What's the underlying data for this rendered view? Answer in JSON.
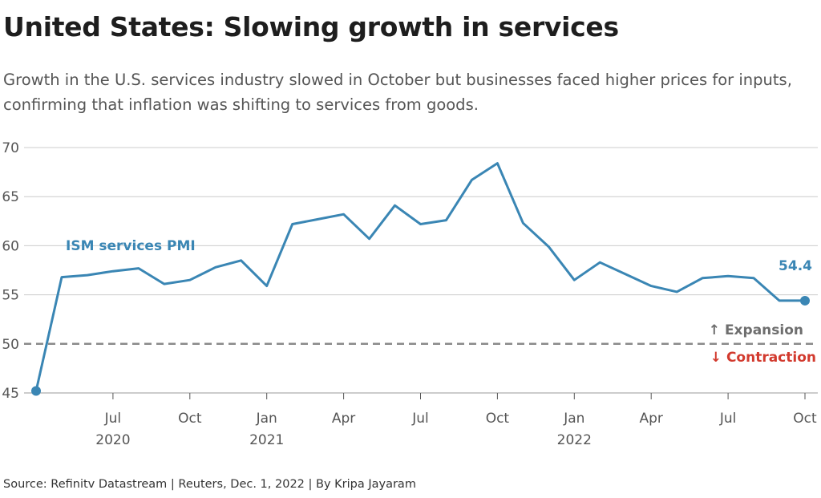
{
  "title": "United States: Slowing growth in services",
  "subtitle_lines": [
    "Growth in the U.S. services industry slowed in October but businesses faced higher prices for inputs,",
    "confirming that inflation was shifting to services from goods."
  ],
  "source": "Source: Refinitv Datastream | Reuters, Dec. 1, 2022 | By Kripa Jayaram",
  "colors": {
    "line": "#3a86b4",
    "grid": "#cccccc",
    "reference": "#8a8a8a",
    "contraction": "#d23a2e",
    "expansion": "#6e6e6e"
  },
  "chart_data": {
    "type": "line",
    "title": "United States: Slowing growth in services",
    "xlabel": "",
    "ylabel": "",
    "ylim": [
      45,
      70
    ],
    "yticks": [
      "45",
      "50",
      "55",
      "60",
      "65",
      "70"
    ],
    "grid": true,
    "xticks": [
      {
        "date": "2020-07",
        "label": "Jul",
        "year": "2020"
      },
      {
        "date": "2020-10",
        "label": "Oct",
        "year": ""
      },
      {
        "date": "2021-01",
        "label": "Jan",
        "year": "2021"
      },
      {
        "date": "2021-04",
        "label": "Apr",
        "year": ""
      },
      {
        "date": "2021-07",
        "label": "Jul",
        "year": ""
      },
      {
        "date": "2021-10",
        "label": "Oct",
        "year": ""
      },
      {
        "date": "2022-01",
        "label": "Jan",
        "year": "2022"
      },
      {
        "date": "2022-04",
        "label": "Apr",
        "year": ""
      },
      {
        "date": "2022-07",
        "label": "Jul",
        "year": ""
      },
      {
        "date": "2022-10",
        "label": "Oct",
        "year": ""
      }
    ],
    "x": [
      "2020-04",
      "2020-05",
      "2020-06",
      "2020-07",
      "2020-08",
      "2020-09",
      "2020-10",
      "2020-11",
      "2020-12",
      "2021-01",
      "2021-02",
      "2021-03",
      "2021-04",
      "2021-05",
      "2021-06",
      "2021-07",
      "2021-08",
      "2021-09",
      "2021-10",
      "2021-11",
      "2021-12",
      "2022-01",
      "2022-02",
      "2022-03",
      "2022-04",
      "2022-05",
      "2022-06",
      "2022-07",
      "2022-08",
      "2022-09",
      "2022-10"
    ],
    "series": [
      {
        "name": "ISM services PMI",
        "values": [
          45.2,
          56.8,
          57.0,
          57.4,
          57.7,
          56.1,
          56.5,
          57.8,
          58.5,
          55.9,
          62.2,
          62.7,
          63.2,
          60.7,
          64.1,
          62.2,
          62.6,
          66.7,
          68.4,
          62.3,
          59.9,
          56.5,
          58.3,
          57.1,
          55.9,
          55.3,
          56.7,
          56.9,
          56.7,
          54.4,
          54.4
        ]
      }
    ],
    "end_label": "54.4",
    "reference_line": {
      "value": 50,
      "above_label": "Expansion",
      "below_label": "Contraction",
      "above_arrow": "↑",
      "below_arrow": "↓"
    }
  }
}
